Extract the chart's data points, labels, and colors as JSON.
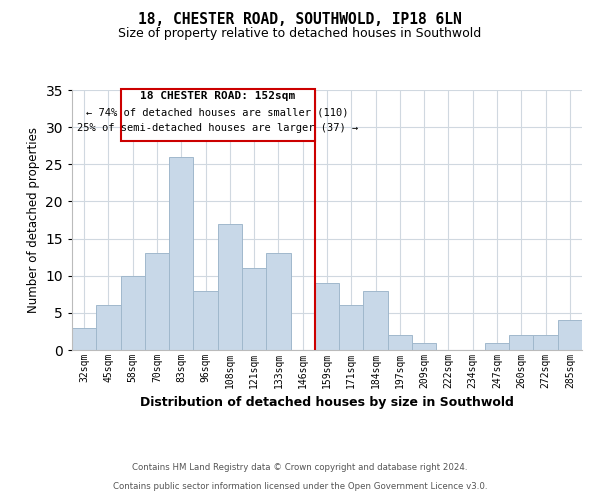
{
  "title": "18, CHESTER ROAD, SOUTHWOLD, IP18 6LN",
  "subtitle": "Size of property relative to detached houses in Southwold",
  "xlabel": "Distribution of detached houses by size in Southwold",
  "ylabel": "Number of detached properties",
  "categories": [
    "32sqm",
    "45sqm",
    "58sqm",
    "70sqm",
    "83sqm",
    "96sqm",
    "108sqm",
    "121sqm",
    "133sqm",
    "146sqm",
    "159sqm",
    "171sqm",
    "184sqm",
    "197sqm",
    "209sqm",
    "222sqm",
    "234sqm",
    "247sqm",
    "260sqm",
    "272sqm",
    "285sqm"
  ],
  "values": [
    3,
    6,
    10,
    13,
    26,
    8,
    17,
    11,
    13,
    0,
    9,
    6,
    8,
    2,
    1,
    0,
    0,
    1,
    2,
    2,
    4
  ],
  "bar_color": "#c8d8e8",
  "bar_edge_color": "#a0b8cc",
  "vline_x_index": 9.5,
  "vline_color": "#cc0000",
  "annotation_title": "18 CHESTER ROAD: 152sqm",
  "annotation_line1": "← 74% of detached houses are smaller (110)",
  "annotation_line2": "25% of semi-detached houses are larger (37) →",
  "annotation_box_color": "#ffffff",
  "annotation_box_edge_color": "#cc0000",
  "ylim": [
    0,
    35
  ],
  "yticks": [
    0,
    5,
    10,
    15,
    20,
    25,
    30,
    35
  ],
  "footer_line1": "Contains HM Land Registry data © Crown copyright and database right 2024.",
  "footer_line2": "Contains public sector information licensed under the Open Government Licence v3.0.",
  "background_color": "#ffffff",
  "grid_color": "#d0d8e0"
}
